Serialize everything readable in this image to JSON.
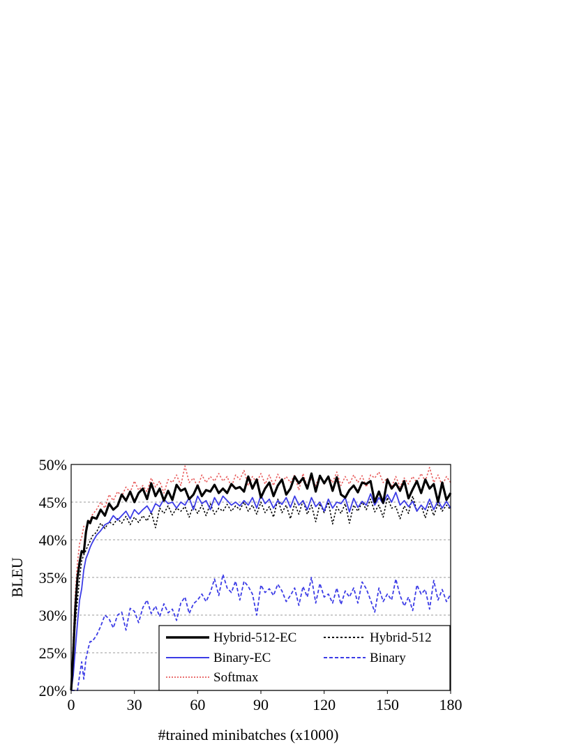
{
  "chart_data": {
    "type": "line",
    "xlabel": "#trained minibatches (x1000)",
    "ylabel": "BLEU",
    "xlim": [
      0,
      180
    ],
    "ylim": [
      20,
      50
    ],
    "x_ticks": [
      "0",
      "30",
      "60",
      "90",
      "120",
      "150",
      "180"
    ],
    "y_ticks": [
      "20%",
      "25%",
      "30%",
      "35%",
      "40%",
      "45%",
      "50%"
    ],
    "grid": "horizontal dashed",
    "legend_position": "bottom-right",
    "series": [
      {
        "name": "Hybrid-512-EC",
        "color": "#000000",
        "style": "solid-thick",
        "x": [
          0,
          1,
          2,
          3,
          4,
          5,
          6,
          7,
          8,
          9,
          10,
          12,
          14,
          16,
          18,
          20,
          22,
          24,
          26,
          28,
          30,
          32,
          34,
          36,
          38,
          40,
          42,
          44,
          46,
          48,
          50,
          52,
          54,
          56,
          58,
          60,
          62,
          64,
          66,
          68,
          70,
          72,
          74,
          76,
          78,
          80,
          82,
          84,
          86,
          88,
          90,
          92,
          94,
          96,
          98,
          100,
          102,
          104,
          106,
          108,
          110,
          112,
          114,
          116,
          118,
          120,
          122,
          124,
          126,
          128,
          130,
          132,
          134,
          136,
          138,
          140,
          142,
          144,
          146,
          148,
          150,
          152,
          154,
          156,
          158,
          160,
          162,
          164,
          166,
          168,
          170,
          172,
          174,
          176,
          178,
          180
        ],
        "values": [
          19.5,
          25.0,
          31.0,
          35.0,
          37.0,
          38.5,
          38.3,
          41.0,
          42.5,
          42.2,
          43.0,
          42.8,
          44.0,
          43.2,
          44.8,
          44.0,
          44.5,
          46.0,
          45.2,
          46.4,
          45.0,
          46.2,
          46.8,
          45.4,
          47.5,
          45.8,
          46.8,
          45.2,
          46.5,
          45.3,
          47.3,
          46.5,
          46.8,
          45.4,
          46.0,
          47.2,
          45.8,
          46.6,
          46.4,
          47.3,
          46.2,
          46.8,
          46.2,
          47.4,
          46.8,
          47.0,
          46.4,
          48.4,
          46.8,
          48.0,
          45.6,
          46.8,
          47.6,
          45.8,
          47.2,
          48.0,
          46.0,
          46.8,
          48.4,
          47.5,
          48.2,
          46.8,
          48.8,
          46.4,
          48.5,
          47.5,
          48.4,
          46.5,
          48.3,
          46.0,
          45.6,
          46.6,
          47.2,
          46.3,
          47.6,
          47.4,
          47.8,
          45.0,
          46.4,
          44.9,
          48.0,
          46.8,
          47.5,
          46.5,
          47.8,
          45.5,
          46.7,
          47.8,
          46.2,
          48.0,
          46.8,
          47.4,
          45.0,
          47.6,
          45.3,
          46.2
        ]
      },
      {
        "name": "Hybrid-512",
        "color": "#000000",
        "style": "dotted",
        "x": [
          0,
          1,
          2,
          3,
          4,
          5,
          6,
          7,
          8,
          9,
          10,
          12,
          14,
          16,
          18,
          20,
          22,
          24,
          26,
          28,
          30,
          32,
          34,
          36,
          38,
          40,
          42,
          44,
          46,
          48,
          50,
          52,
          54,
          56,
          58,
          60,
          62,
          64,
          66,
          68,
          70,
          72,
          74,
          76,
          78,
          80,
          82,
          84,
          86,
          88,
          90,
          92,
          94,
          96,
          98,
          100,
          102,
          104,
          106,
          108,
          110,
          112,
          114,
          116,
          118,
          120,
          122,
          124,
          126,
          128,
          130,
          132,
          134,
          136,
          138,
          140,
          142,
          144,
          146,
          148,
          150,
          152,
          154,
          156,
          158,
          160,
          162,
          164,
          166,
          168,
          170,
          172,
          174,
          176,
          178,
          180
        ],
        "values": [
          19.5,
          26.0,
          29.0,
          32.0,
          35.0,
          37.2,
          38.0,
          38.6,
          39.3,
          39.8,
          40.5,
          41.0,
          42.2,
          41.5,
          42.4,
          42.0,
          42.8,
          42.2,
          43.1,
          42.0,
          43.0,
          42.3,
          43.2,
          42.5,
          43.7,
          41.6,
          44.2,
          43.5,
          44.5,
          43.3,
          44.2,
          43.8,
          44.4,
          43.0,
          44.6,
          43.5,
          44.6,
          43.2,
          44.8,
          43.4,
          44.2,
          43.8,
          44.7,
          43.8,
          44.5,
          44.0,
          45.0,
          43.8,
          44.6,
          43.4,
          45.0,
          43.6,
          44.4,
          43.0,
          45.4,
          43.6,
          44.6,
          42.8,
          44.8,
          43.4,
          45.2,
          43.4,
          44.6,
          42.4,
          44.8,
          43.6,
          45.0,
          42.1,
          44.4,
          43.5,
          44.8,
          42.2,
          44.6,
          43.8,
          45.0,
          44.0,
          45.4,
          43.7,
          44.6,
          43.0,
          45.6,
          44.2,
          44.4,
          42.8,
          44.5,
          43.5,
          45.8,
          43.8,
          44.6,
          42.9,
          44.8,
          43.2,
          44.8,
          43.8,
          44.6,
          44.0
        ]
      },
      {
        "name": "Binary-EC",
        "color": "#3b3be6",
        "style": "solid",
        "x": [
          0,
          1,
          2,
          3,
          4,
          5,
          6,
          7,
          8,
          9,
          10,
          12,
          14,
          16,
          18,
          20,
          22,
          24,
          26,
          28,
          30,
          32,
          34,
          36,
          38,
          40,
          42,
          44,
          46,
          48,
          50,
          52,
          54,
          56,
          58,
          60,
          62,
          64,
          66,
          68,
          70,
          72,
          74,
          76,
          78,
          80,
          82,
          84,
          86,
          88,
          90,
          92,
          94,
          96,
          98,
          100,
          102,
          104,
          106,
          108,
          110,
          112,
          114,
          116,
          118,
          120,
          122,
          124,
          126,
          128,
          130,
          132,
          134,
          136,
          138,
          140,
          142,
          144,
          146,
          148,
          150,
          152,
          154,
          156,
          158,
          160,
          162,
          164,
          166,
          168,
          170,
          172,
          174,
          176,
          178,
          180
        ],
        "values": [
          19.5,
          22.0,
          25.5,
          29.0,
          32.0,
          33.5,
          36.0,
          37.5,
          38.2,
          39.0,
          39.6,
          40.6,
          41.2,
          42.0,
          42.3,
          43.2,
          42.6,
          43.2,
          43.8,
          42.8,
          44.0,
          43.4,
          44.0,
          44.5,
          43.6,
          44.8,
          44.4,
          45.4,
          44.8,
          45.0,
          44.2,
          45.0,
          44.6,
          45.6,
          44.0,
          45.8,
          44.8,
          45.2,
          44.0,
          45.6,
          44.6,
          45.8,
          45.2,
          44.6,
          45.0,
          44.5,
          45.2,
          44.6,
          45.6,
          44.2,
          45.9,
          44.8,
          45.4,
          44.2,
          45.2,
          44.7,
          45.6,
          44.3,
          45.8,
          44.6,
          45.2,
          44.0,
          45.6,
          44.4,
          45.0,
          43.8,
          45.4,
          44.2,
          45.0,
          44.8,
          45.6,
          43.7,
          45.5,
          44.3,
          45.1,
          44.6,
          46.1,
          44.6,
          45.6,
          44.8,
          46.0,
          45.0,
          46.3,
          44.6,
          45.2,
          44.4,
          45.1,
          43.8,
          44.6,
          44.0,
          45.4,
          44.0,
          45.2,
          44.2,
          45.1,
          44.2
        ]
      },
      {
        "name": "Binary",
        "color": "#3b3be6",
        "style": "dashed",
        "x": [
          0,
          1,
          2,
          3,
          4,
          5,
          6,
          7,
          8,
          9,
          10,
          12,
          14,
          16,
          18,
          20,
          22,
          24,
          26,
          28,
          30,
          32,
          34,
          36,
          38,
          40,
          42,
          44,
          46,
          48,
          50,
          52,
          54,
          56,
          58,
          60,
          62,
          64,
          66,
          68,
          70,
          72,
          74,
          76,
          78,
          80,
          82,
          84,
          86,
          88,
          90,
          92,
          94,
          96,
          98,
          100,
          102,
          104,
          106,
          108,
          110,
          112,
          114,
          116,
          118,
          120,
          122,
          124,
          126,
          128,
          130,
          132,
          134,
          136,
          138,
          140,
          142,
          144,
          146,
          148,
          150,
          152,
          154,
          156,
          158,
          160,
          162,
          164,
          166,
          168,
          170,
          172,
          174,
          176,
          178,
          180
        ],
        "values": [
          19.5,
          18.5,
          19.5,
          20.0,
          22.0,
          23.8,
          21.5,
          24.2,
          25.5,
          26.5,
          26.5,
          27.3,
          28.5,
          30.0,
          29.5,
          28.3,
          30.0,
          30.4,
          28.0,
          30.9,
          30.5,
          29.0,
          31.0,
          32.0,
          30.2,
          31.2,
          29.8,
          31.5,
          30.3,
          30.8,
          29.3,
          31.6,
          32.4,
          30.2,
          31.5,
          32.0,
          32.8,
          31.8,
          33.0,
          34.8,
          32.6,
          35.4,
          33.6,
          33.0,
          34.5,
          32.0,
          34.5,
          33.8,
          32.8,
          30.0,
          34.0,
          33.0,
          33.5,
          32.6,
          34.1,
          33.2,
          31.8,
          32.6,
          33.6,
          31.3,
          33.8,
          32.4,
          35.0,
          31.6,
          34.2,
          32.4,
          32.8,
          31.6,
          33.6,
          31.4,
          33.2,
          32.4,
          33.6,
          31.6,
          34.4,
          33.5,
          32.0,
          30.4,
          33.6,
          31.8,
          32.8,
          32.0,
          34.8,
          32.6,
          31.2,
          32.4,
          30.6,
          34.0,
          32.8,
          33.4,
          30.8,
          34.6,
          32.0,
          33.4,
          31.8,
          32.8
        ]
      },
      {
        "name": "Softmax",
        "color": "#e85c5c",
        "style": "dotted",
        "x": [
          0,
          1,
          2,
          3,
          4,
          5,
          6,
          7,
          8,
          9,
          10,
          12,
          14,
          16,
          18,
          20,
          22,
          24,
          26,
          28,
          30,
          32,
          34,
          36,
          38,
          40,
          42,
          44,
          46,
          48,
          50,
          52,
          54,
          56,
          58,
          60,
          62,
          64,
          66,
          68,
          70,
          72,
          74,
          76,
          78,
          80,
          82,
          84,
          86,
          88,
          90,
          92,
          94,
          96,
          98,
          100,
          102,
          104,
          106,
          108,
          110,
          112,
          114,
          116,
          118,
          120,
          122,
          124,
          126,
          128,
          130,
          132,
          134,
          136,
          138,
          140,
          142,
          144,
          146,
          148,
          150,
          152,
          154,
          156,
          158,
          160,
          162,
          164,
          166,
          168,
          170,
          172,
          174,
          176,
          178,
          180
        ],
        "values": [
          19.5,
          27.0,
          33.0,
          37.0,
          39.5,
          40.3,
          41.8,
          41.6,
          42.2,
          42.6,
          43.3,
          44.0,
          45.0,
          44.2,
          46.0,
          45.2,
          46.4,
          45.8,
          47.0,
          46.3,
          47.8,
          46.6,
          47.2,
          46.4,
          48.2,
          47.0,
          47.8,
          46.2,
          48.0,
          47.6,
          48.6,
          47.2,
          49.8,
          47.6,
          48.2,
          47.0,
          48.6,
          47.6,
          48.4,
          47.8,
          48.8,
          47.8,
          48.4,
          47.0,
          48.6,
          48.0,
          49.2,
          47.2,
          48.4,
          47.6,
          48.8,
          47.4,
          48.6,
          47.2,
          48.7,
          47.6,
          48.4,
          47.6,
          48.6,
          46.6,
          48.8,
          47.0,
          48.2,
          47.2,
          48.6,
          47.4,
          48.4,
          47.6,
          49.0,
          47.2,
          48.4,
          47.4,
          48.6,
          47.6,
          48.5,
          47.0,
          48.6,
          48.2,
          49.0,
          47.6,
          48.2,
          47.0,
          48.4,
          47.0,
          48.2,
          47.4,
          48.4,
          47.6,
          48.8,
          47.8,
          49.6,
          47.6,
          48.6,
          47.2,
          48.4,
          47.6
        ]
      }
    ]
  }
}
